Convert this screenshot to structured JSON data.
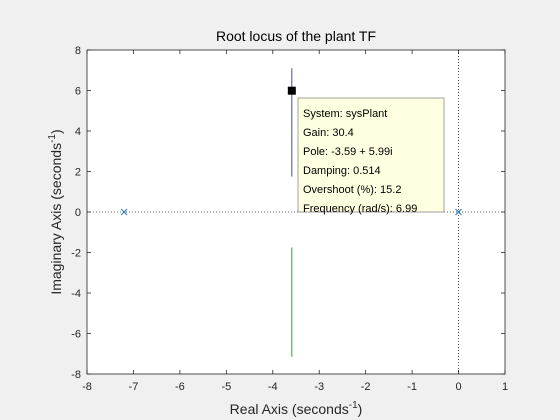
{
  "chart_data": {
    "type": "scatter",
    "title": "Root locus of the plant TF",
    "xlabel": {
      "text": "Real Axis (seconds",
      "sup": "-1",
      "close": ")"
    },
    "ylabel": {
      "text": "Imaginary Axis (seconds",
      "sup": "-1",
      "close": ")"
    },
    "xlim": [
      -8,
      1
    ],
    "ylim": [
      -8,
      8
    ],
    "xticks": [
      -8,
      -7,
      -6,
      -5,
      -4,
      -3,
      -2,
      -1,
      0,
      1
    ],
    "yticks": [
      -8,
      -6,
      -4,
      -2,
      0,
      2,
      4,
      6,
      8
    ],
    "grid": false,
    "reference_lines": [
      {
        "orientation": "horizontal",
        "value": 0,
        "style": "dotted"
      },
      {
        "orientation": "vertical",
        "value": 0,
        "style": "dotted"
      }
    ],
    "series": [
      {
        "values": [
          [
            -3.59,
            1.75
          ],
          [
            -3.59,
            7.1
          ]
        ],
        "color": "#4b4b9b"
      },
      {
        "values": [
          [
            -3.59,
            -1.75
          ],
          [
            -3.59,
            -7.15
          ]
        ],
        "color": "#2ca02c"
      }
    ],
    "poles": [
      [
        -7.2,
        0
      ],
      [
        0,
        0
      ]
    ],
    "pole_color": "#1f77b4",
    "selected_point": [
      -3.59,
      5.99
    ],
    "datatip": [
      "System: sysPlant",
      "Gain: 30.4",
      "Pole: -3.59 + 5.99i",
      "Damping: 0.514",
      "Overshoot (%): 15.2",
      "Frequency (rad/s): 6.99"
    ]
  }
}
